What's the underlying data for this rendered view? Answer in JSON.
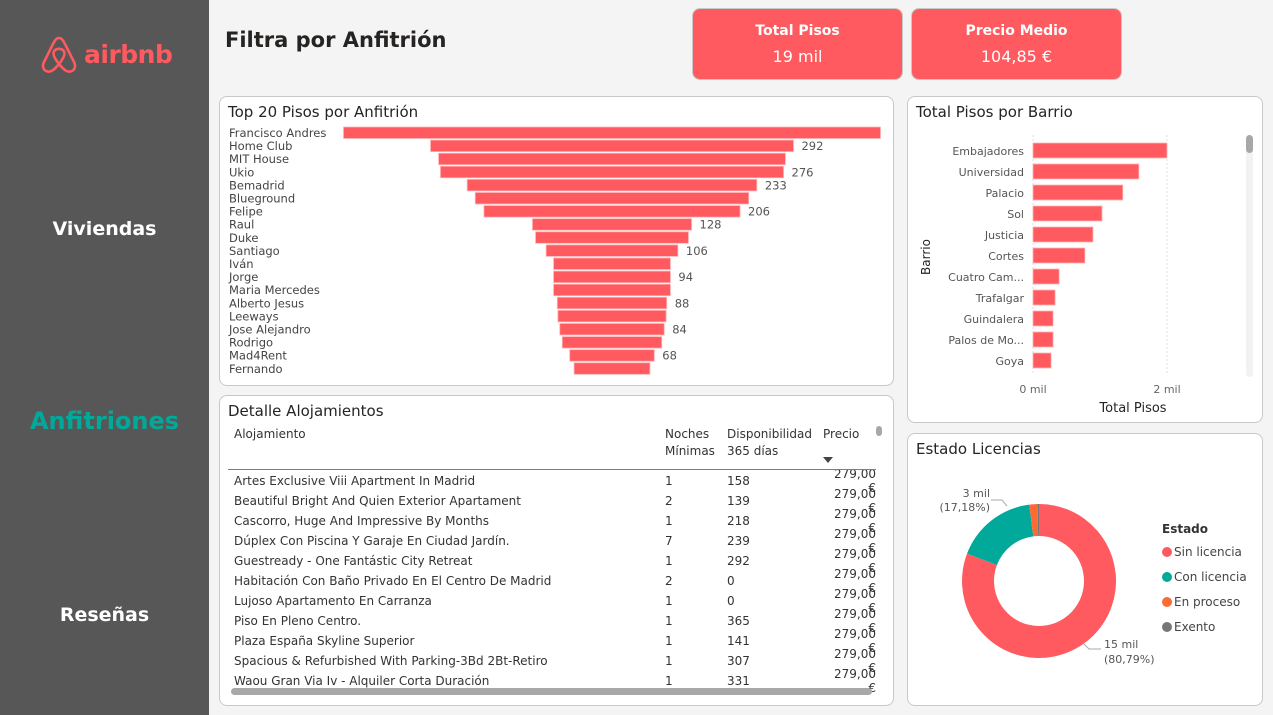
{
  "brand": {
    "name": "airbnb",
    "color": "#ff5a5f"
  },
  "nav": [
    {
      "label": "Viviendas",
      "active": false
    },
    {
      "label": "Anfitriones",
      "active": true
    },
    {
      "label": "Reseñas",
      "active": false
    }
  ],
  "header": {
    "title": "Filtra por Anfitrión"
  },
  "kpis": [
    {
      "label": "Total Pisos",
      "value": "19 mil"
    },
    {
      "label": "Precio Medio",
      "value": "104,85 €"
    }
  ],
  "colors": {
    "accent": "#ff5a5f",
    "teal": "#01a99a",
    "orange": "#fd6b35",
    "gray": "#777777",
    "sidebar": "#575757"
  },
  "chart_data": [
    {
      "type": "bar",
      "subtype": "funnel",
      "title": "Top 20 Pisos por Anfitrión",
      "categories": [
        "Francisco Andres",
        "Home Club",
        "MIT House",
        "Ukio",
        "Bemadrid",
        "Blueground",
        "Felipe",
        "Raul",
        "Duke",
        "Santiago",
        "Iván",
        "Jorge",
        "Maria Mercedes",
        "Alberto Jesus",
        "Leeways",
        "Jose Alejandro",
        "Rodrigo",
        "Mad4Rent",
        "Fernando"
      ],
      "values": [
        432,
        292,
        279,
        276,
        233,
        220,
        206,
        128,
        123,
        106,
        94,
        94,
        94,
        88,
        87,
        84,
        80,
        68,
        61
      ],
      "data_labels": [
        "",
        "292",
        "",
        "276",
        "233",
        "",
        "206",
        "128",
        "",
        "106",
        "",
        "94",
        "",
        "88",
        "",
        "84",
        "",
        "68",
        ""
      ]
    },
    {
      "type": "bar",
      "orientation": "horizontal",
      "title": "Total Pisos por Barrio",
      "categories": [
        "Embajadores",
        "Universidad",
        "Palacio",
        "Sol",
        "Justicia",
        "Cortes",
        "Cuatro Cam...",
        "Trafalgar",
        "Guindalera",
        "Palos de Mo...",
        "Goya"
      ],
      "values": [
        2000,
        1580,
        1340,
        1030,
        895,
        775,
        390,
        330,
        300,
        300,
        270
      ],
      "xlabel": "Total Pisos",
      "ylabel": "Barrio",
      "xticks": [
        {
          "value": 0,
          "label": "0 mil"
        },
        {
          "value": 2000,
          "label": "2 mil"
        }
      ],
      "xlim": [
        0,
        2000
      ],
      "grid": true
    },
    {
      "type": "pie",
      "subtype": "donut",
      "title": "Estado Licencias",
      "legend_title": "Estado",
      "legend_position": "right",
      "slices": [
        {
          "label": "Sin licencia",
          "percent": 80.79,
          "color": "#ff5a5f",
          "data_label": "15 mil",
          "pct_label": "(80,79%)"
        },
        {
          "label": "Con licencia",
          "percent": 17.18,
          "color": "#01a99a",
          "data_label": "3 mil",
          "pct_label": "(17,18%)"
        },
        {
          "label": "En proceso",
          "percent": 1.73,
          "color": "#fd6b35",
          "data_label": "",
          "pct_label": ""
        },
        {
          "label": "Exento",
          "percent": 0.3,
          "color": "#777777",
          "data_label": "",
          "pct_label": ""
        }
      ]
    }
  ],
  "table": {
    "title": "Detalle Alojamientos",
    "columns": [
      "Alojamiento",
      "Noches\nMínimas",
      "Disponibilidad\n365 días",
      "Precio"
    ],
    "col_lines": [
      [
        "Alojamiento"
      ],
      [
        "Noches",
        "Mínimas"
      ],
      [
        "Disponibilidad",
        "365 días"
      ],
      [
        "Precio"
      ]
    ],
    "sort_column": "Precio",
    "sort_dir": "desc",
    "rows": [
      [
        "Artes Exclusive Viii Apartment In Madrid",
        "1",
        "158",
        "279,00 €"
      ],
      [
        "Beautiful Bright And Quien Exterior Apartament",
        "2",
        "139",
        "279,00 €"
      ],
      [
        "Cascorro, Huge And Impressive By Months",
        "1",
        "218",
        "279,00 €"
      ],
      [
        "Dúplex Con Piscina Y Garaje En Ciudad Jardín.",
        "7",
        "239",
        "279,00 €"
      ],
      [
        "Guestready - One Fantástic City Retreat",
        "1",
        "292",
        "279,00 €"
      ],
      [
        "Habitación Con Baño Privado En El Centro De Madrid",
        "2",
        "0",
        "279,00 €"
      ],
      [
        "Lujoso Apartamento En Carranza",
        "1",
        "0",
        "279,00 €"
      ],
      [
        "Piso En Pleno Centro.",
        "1",
        "365",
        "279,00 €"
      ],
      [
        "Plaza España Skyline Superior",
        "1",
        "141",
        "279,00 €"
      ],
      [
        "Spacious & Refurbished With Parking-3Bd 2Bt-Retiro",
        "1",
        "307",
        "279,00 €"
      ],
      [
        "Waou Gran Via Iv - Alquiler Corta Duración",
        "1",
        "331",
        "279,00 €"
      ]
    ]
  }
}
